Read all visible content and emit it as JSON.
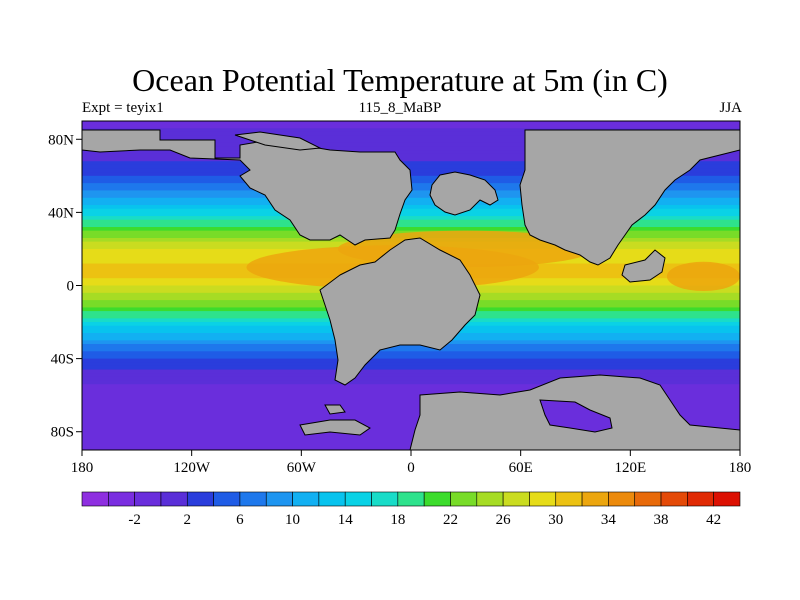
{
  "header": {
    "title": "Ocean Potential Temperature at 5m (in C)",
    "left_label": "Expt = teyix1",
    "center_label": "115_8_MaBP",
    "right_label": "JJA"
  },
  "chart_data": {
    "type": "heatmap",
    "title": "Ocean Potential Temperature at 5m (in C)",
    "subtitle": "115_8_MaBP",
    "experiment": "Expt = teyix1",
    "season": "JJA",
    "x_range": [
      -180,
      180
    ],
    "y_range": [
      -90,
      90
    ],
    "x_ticks": [
      {
        "value": -180,
        "label": "180"
      },
      {
        "value": -120,
        "label": "120W"
      },
      {
        "value": -60,
        "label": "60W"
      },
      {
        "value": 0,
        "label": "0"
      },
      {
        "value": 60,
        "label": "60E"
      },
      {
        "value": 120,
        "label": "120E"
      },
      {
        "value": 180,
        "label": "180"
      }
    ],
    "y_ticks": [
      {
        "value": 80,
        "label": "80N"
      },
      {
        "value": 40,
        "label": "40N"
      },
      {
        "value": 0,
        "label": "0"
      },
      {
        "value": -40,
        "label": "40S"
      },
      {
        "value": -80,
        "label": "80S"
      }
    ],
    "colorbar": {
      "levels": [
        -4,
        -2,
        0,
        2,
        4,
        6,
        8,
        10,
        12,
        14,
        16,
        18,
        20,
        22,
        24,
        26,
        28,
        30,
        32,
        34,
        36,
        38,
        40,
        42
      ],
      "labels": [
        "-2",
        "2",
        "6",
        "10",
        "14",
        "18",
        "22",
        "26",
        "30",
        "34",
        "38",
        "42"
      ],
      "colors": [
        "#8e2fe0",
        "#7a2ee0",
        "#6a2edc",
        "#5a2fd8",
        "#2a3ddc",
        "#1f5ce6",
        "#1e78ec",
        "#1e95f0",
        "#12b0f2",
        "#08c3ee",
        "#0ad2e6",
        "#18dcc8",
        "#2ee28c",
        "#3cdc2c",
        "#78dc28",
        "#a6dc24",
        "#cadc20",
        "#e6dc18",
        "#ecc212",
        "#eca60e",
        "#ec8a0c",
        "#e86a0a",
        "#e44a08",
        "#e02a04",
        "#dc1002"
      ]
    },
    "features": {
      "land_color": "#a6a6a6",
      "warm_pool_peak_c": 32,
      "polar_minimum_c": -2
    }
  }
}
